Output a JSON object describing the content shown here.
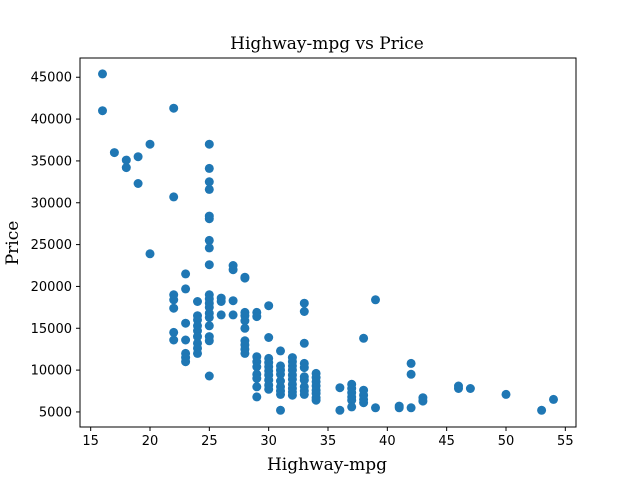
{
  "chart_data": {
    "type": "scatter",
    "title": "Highway-mpg vs Price",
    "xlabel": "Highway-mpg",
    "ylabel": "Price",
    "xlim": [
      14.1,
      55.9
    ],
    "ylim": [
      3200,
      47300
    ],
    "xticks": [
      15,
      20,
      25,
      30,
      35,
      40,
      45,
      50,
      55
    ],
    "yticks": [
      5000,
      10000,
      15000,
      20000,
      25000,
      30000,
      35000,
      40000,
      45000
    ],
    "grid": false,
    "point_color": "#1f77b4",
    "points": [
      [
        16,
        45400
      ],
      [
        16,
        41000
      ],
      [
        17,
        36000
      ],
      [
        18,
        35100
      ],
      [
        18,
        34200
      ],
      [
        19,
        35500
      ],
      [
        19,
        32300
      ],
      [
        20,
        37000
      ],
      [
        20,
        23900
      ],
      [
        22,
        41300
      ],
      [
        22,
        30700
      ],
      [
        22,
        19000
      ],
      [
        22,
        18400
      ],
      [
        22,
        17400
      ],
      [
        22,
        14500
      ],
      [
        22,
        13600
      ],
      [
        23,
        21500
      ],
      [
        23,
        19700
      ],
      [
        23,
        15600
      ],
      [
        23,
        13600
      ],
      [
        23,
        12000
      ],
      [
        23,
        11500
      ],
      [
        23,
        11000
      ],
      [
        24,
        18200
      ],
      [
        24,
        16500
      ],
      [
        24,
        16000
      ],
      [
        24,
        15300
      ],
      [
        24,
        14700
      ],
      [
        24,
        14000
      ],
      [
        24,
        13200
      ],
      [
        24,
        12600
      ],
      [
        24,
        12000
      ],
      [
        25,
        37000
      ],
      [
        25,
        34100
      ],
      [
        25,
        32500
      ],
      [
        25,
        31600
      ],
      [
        25,
        28400
      ],
      [
        25,
        28100
      ],
      [
        25,
        25500
      ],
      [
        25,
        24600
      ],
      [
        25,
        22600
      ],
      [
        25,
        19000
      ],
      [
        25,
        18500
      ],
      [
        25,
        18000
      ],
      [
        25,
        17500
      ],
      [
        25,
        16800
      ],
      [
        25,
        16300
      ],
      [
        25,
        15300
      ],
      [
        25,
        14000
      ],
      [
        25,
        13500
      ],
      [
        25,
        9300
      ],
      [
        26,
        18600
      ],
      [
        26,
        18200
      ],
      [
        26,
        16600
      ],
      [
        27,
        22500
      ],
      [
        27,
        22000
      ],
      [
        27,
        18300
      ],
      [
        27,
        16600
      ],
      [
        28,
        21100
      ],
      [
        28,
        21000
      ],
      [
        28,
        16900
      ],
      [
        28,
        16500
      ],
      [
        28,
        15900
      ],
      [
        28,
        15000
      ],
      [
        28,
        13500
      ],
      [
        28,
        13000
      ],
      [
        28,
        12500
      ],
      [
        28,
        12000
      ],
      [
        29,
        16900
      ],
      [
        29,
        16400
      ],
      [
        29,
        11600
      ],
      [
        29,
        11000
      ],
      [
        29,
        10400
      ],
      [
        29,
        9500
      ],
      [
        29,
        9000
      ],
      [
        29,
        8000
      ],
      [
        29,
        6800
      ],
      [
        30,
        17700
      ],
      [
        30,
        13900
      ],
      [
        30,
        11400
      ],
      [
        30,
        10900
      ],
      [
        30,
        10400
      ],
      [
        30,
        9900
      ],
      [
        30,
        9400
      ],
      [
        30,
        8800
      ],
      [
        30,
        8200
      ],
      [
        30,
        7700
      ],
      [
        31,
        12300
      ],
      [
        31,
        10500
      ],
      [
        31,
        10000
      ],
      [
        31,
        9500
      ],
      [
        31,
        8700
      ],
      [
        31,
        8000
      ],
      [
        31,
        7500
      ],
      [
        31,
        7100
      ],
      [
        31,
        5200
      ],
      [
        32,
        11500
      ],
      [
        32,
        11000
      ],
      [
        32,
        10500
      ],
      [
        32,
        10000
      ],
      [
        32,
        9400
      ],
      [
        32,
        8900
      ],
      [
        32,
        8300
      ],
      [
        32,
        7800
      ],
      [
        32,
        7400
      ],
      [
        32,
        7000
      ],
      [
        33,
        18000
      ],
      [
        33,
        17000
      ],
      [
        33,
        13200
      ],
      [
        33,
        10800
      ],
      [
        33,
        10300
      ],
      [
        33,
        9200
      ],
      [
        33,
        8800
      ],
      [
        33,
        8000
      ],
      [
        33,
        7500
      ],
      [
        33,
        7100
      ],
      [
        34,
        9600
      ],
      [
        34,
        9100
      ],
      [
        34,
        8600
      ],
      [
        34,
        8100
      ],
      [
        34,
        7600
      ],
      [
        34,
        7200
      ],
      [
        34,
        6700
      ],
      [
        34,
        6400
      ],
      [
        36,
        7900
      ],
      [
        36,
        5200
      ],
      [
        37,
        8300
      ],
      [
        37,
        7800
      ],
      [
        37,
        7300
      ],
      [
        37,
        6800
      ],
      [
        37,
        6400
      ],
      [
        37,
        5600
      ],
      [
        38,
        13800
      ],
      [
        38,
        7600
      ],
      [
        38,
        7000
      ],
      [
        38,
        6500
      ],
      [
        38,
        6100
      ],
      [
        39,
        18400
      ],
      [
        39,
        5500
      ],
      [
        41,
        5700
      ],
      [
        41,
        5500
      ],
      [
        42,
        10800
      ],
      [
        42,
        9500
      ],
      [
        42,
        5500
      ],
      [
        43,
        6700
      ],
      [
        43,
        6300
      ],
      [
        46,
        8100
      ],
      [
        46,
        7800
      ],
      [
        47,
        7800
      ],
      [
        50,
        7100
      ],
      [
        53,
        5200
      ],
      [
        54,
        6500
      ]
    ]
  }
}
